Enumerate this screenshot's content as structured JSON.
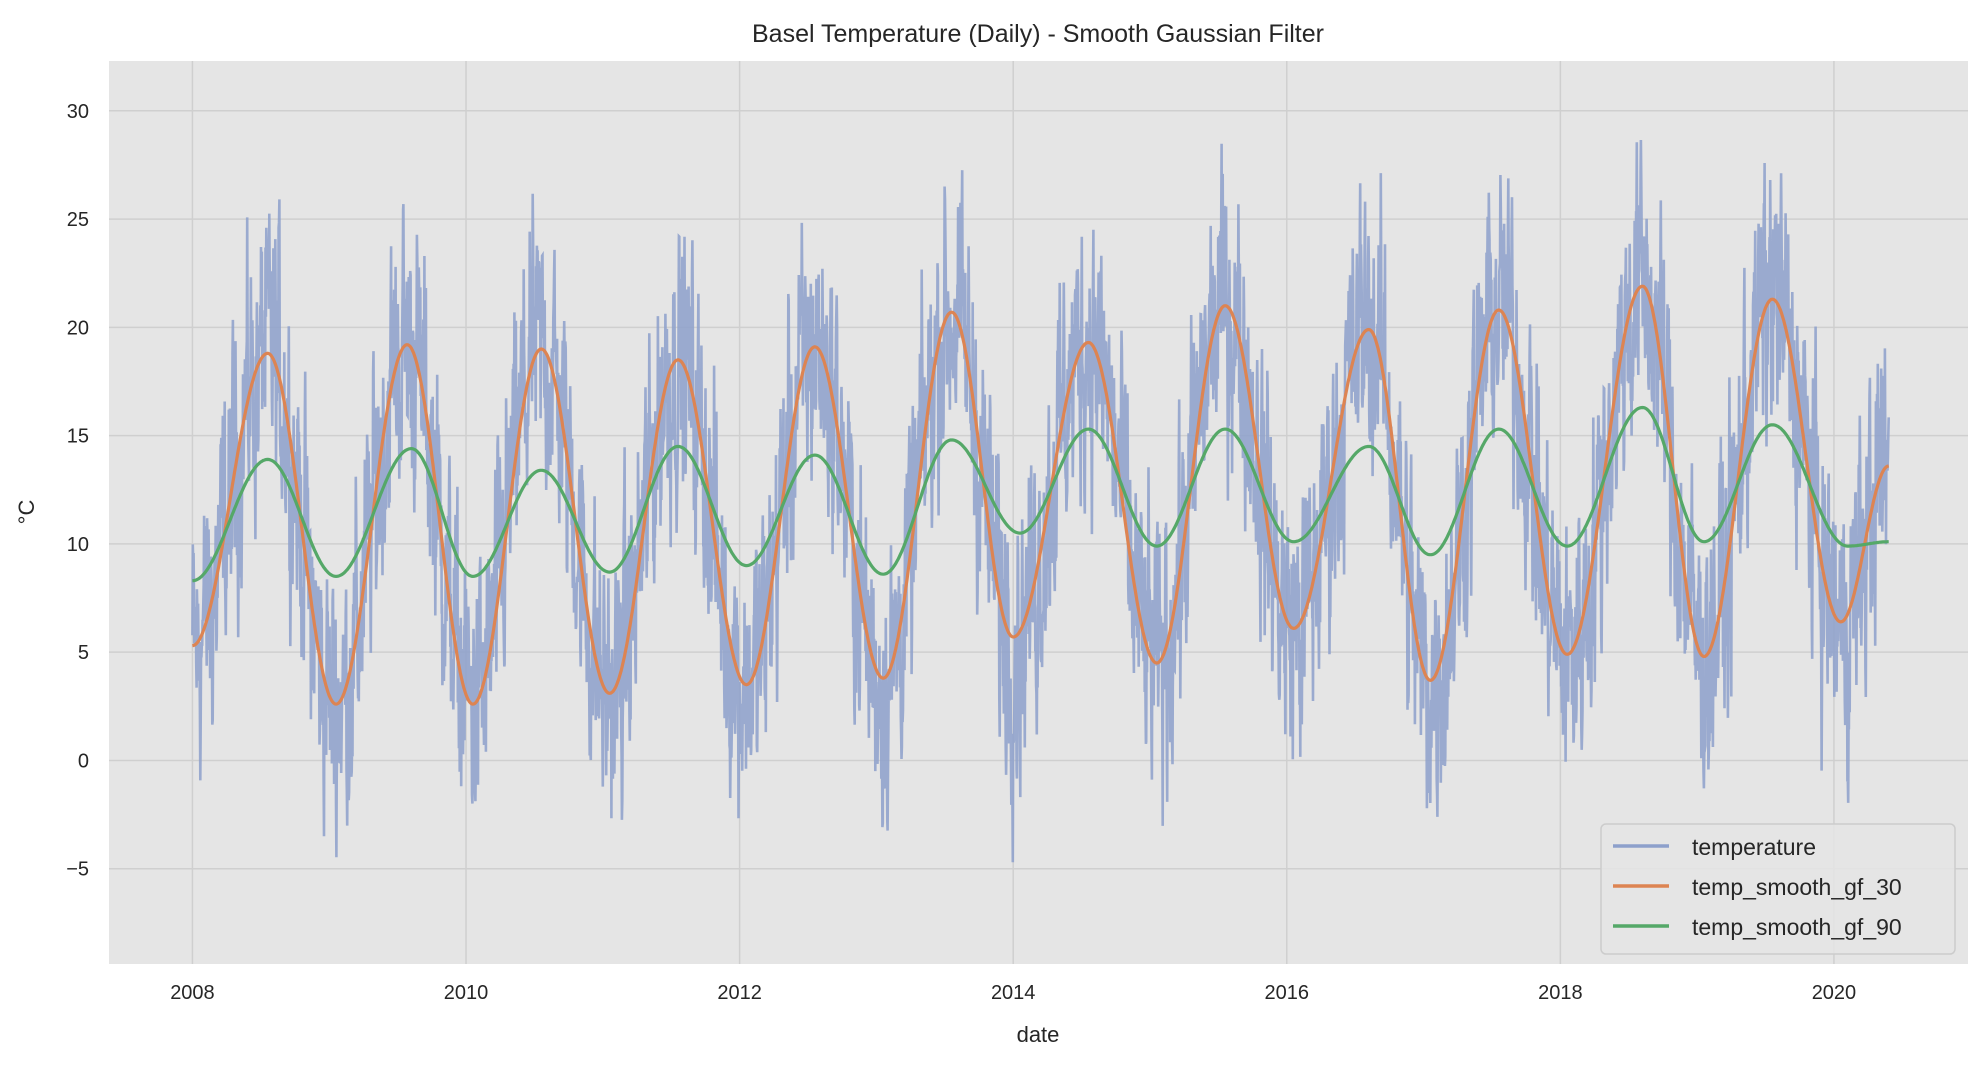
{
  "chart_data": {
    "type": "line",
    "title": "Basel Temperature (Daily) -  Smooth Gaussian Filter",
    "xlabel": "date",
    "ylabel": "°C",
    "xlim": [
      2007.39,
      2020.98
    ],
    "ylim": [
      -9.4,
      32.3
    ],
    "xticks": [
      2008,
      2010,
      2012,
      2014,
      2016,
      2018,
      2020
    ],
    "xtick_labels": [
      "2008",
      "2010",
      "2012",
      "2014",
      "2016",
      "2018",
      "2020"
    ],
    "yticks": [
      -5,
      0,
      5,
      10,
      15,
      20,
      25,
      30
    ],
    "ytick_labels": [
      "−5",
      "0",
      "5",
      "10",
      "15",
      "20",
      "25",
      "30"
    ],
    "grid": true,
    "legend_position": "lower-right",
    "series": [
      {
        "name": "temperature",
        "color": "#8da0cb",
        "note": "daily values, noisy around seasonal cycle",
        "observed_max": 30.4,
        "observed_min": -7.6,
        "x_range": [
          2008.0,
          2020.4
        ]
      },
      {
        "name": "temp_smooth_gf_30",
        "color": "#dd8452",
        "x": [
          2008.0,
          2008.55,
          2009.05,
          2009.57,
          2010.05,
          2010.55,
          2011.05,
          2011.55,
          2012.05,
          2012.55,
          2013.05,
          2013.55,
          2014.0,
          2014.55,
          2015.05,
          2015.55,
          2016.05,
          2016.6,
          2017.05,
          2017.55,
          2018.05,
          2018.6,
          2019.05,
          2019.55,
          2020.05,
          2020.4
        ],
        "y": [
          5.3,
          18.8,
          2.6,
          19.2,
          2.6,
          19.0,
          3.1,
          18.5,
          3.5,
          19.1,
          3.8,
          20.7,
          5.7,
          19.3,
          4.5,
          21.0,
          6.1,
          19.9,
          3.7,
          20.8,
          4.9,
          21.9,
          4.8,
          21.3,
          6.4,
          13.6
        ]
      },
      {
        "name": "temp_smooth_gf_90",
        "color": "#55a868",
        "x": [
          2008.0,
          2008.55,
          2009.05,
          2009.6,
          2010.05,
          2010.55,
          2011.05,
          2011.55,
          2012.05,
          2012.55,
          2013.05,
          2013.55,
          2014.05,
          2014.55,
          2015.05,
          2015.55,
          2016.05,
          2016.6,
          2017.05,
          2017.55,
          2018.05,
          2018.6,
          2019.05,
          2019.55,
          2020.1,
          2020.4
        ],
        "y": [
          8.3,
          13.9,
          8.5,
          14.4,
          8.5,
          13.4,
          8.7,
          14.5,
          9.0,
          14.1,
          8.6,
          14.8,
          10.5,
          15.3,
          9.9,
          15.3,
          10.1,
          14.5,
          9.5,
          15.3,
          9.9,
          16.3,
          10.1,
          15.5,
          9.9,
          10.1
        ]
      }
    ]
  }
}
